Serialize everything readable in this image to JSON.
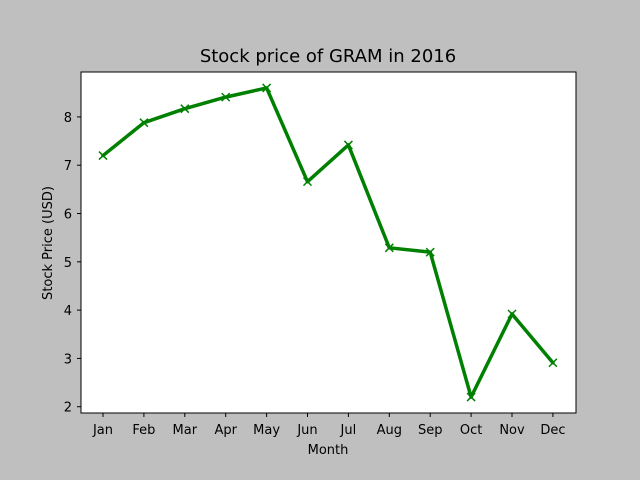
{
  "chart_data": {
    "type": "line",
    "title": "Stock price of GRAM in 2016",
    "xlabel": "Month",
    "ylabel": "Stock Price (USD)",
    "categories": [
      "Jan",
      "Feb",
      "Mar",
      "Apr",
      "May",
      "Jun",
      "Jul",
      "Aug",
      "Sep",
      "Oct",
      "Nov",
      "Dec"
    ],
    "values": [
      7.2,
      7.88,
      8.17,
      8.41,
      8.6,
      6.66,
      7.42,
      5.29,
      5.2,
      2.2,
      3.92,
      2.91
    ],
    "yticks": [
      2,
      3,
      4,
      5,
      6,
      7,
      8
    ],
    "ylim": [
      1.87,
      8.93
    ],
    "line_color": "#008000",
    "marker": "x",
    "grid": false,
    "legend": false
  }
}
